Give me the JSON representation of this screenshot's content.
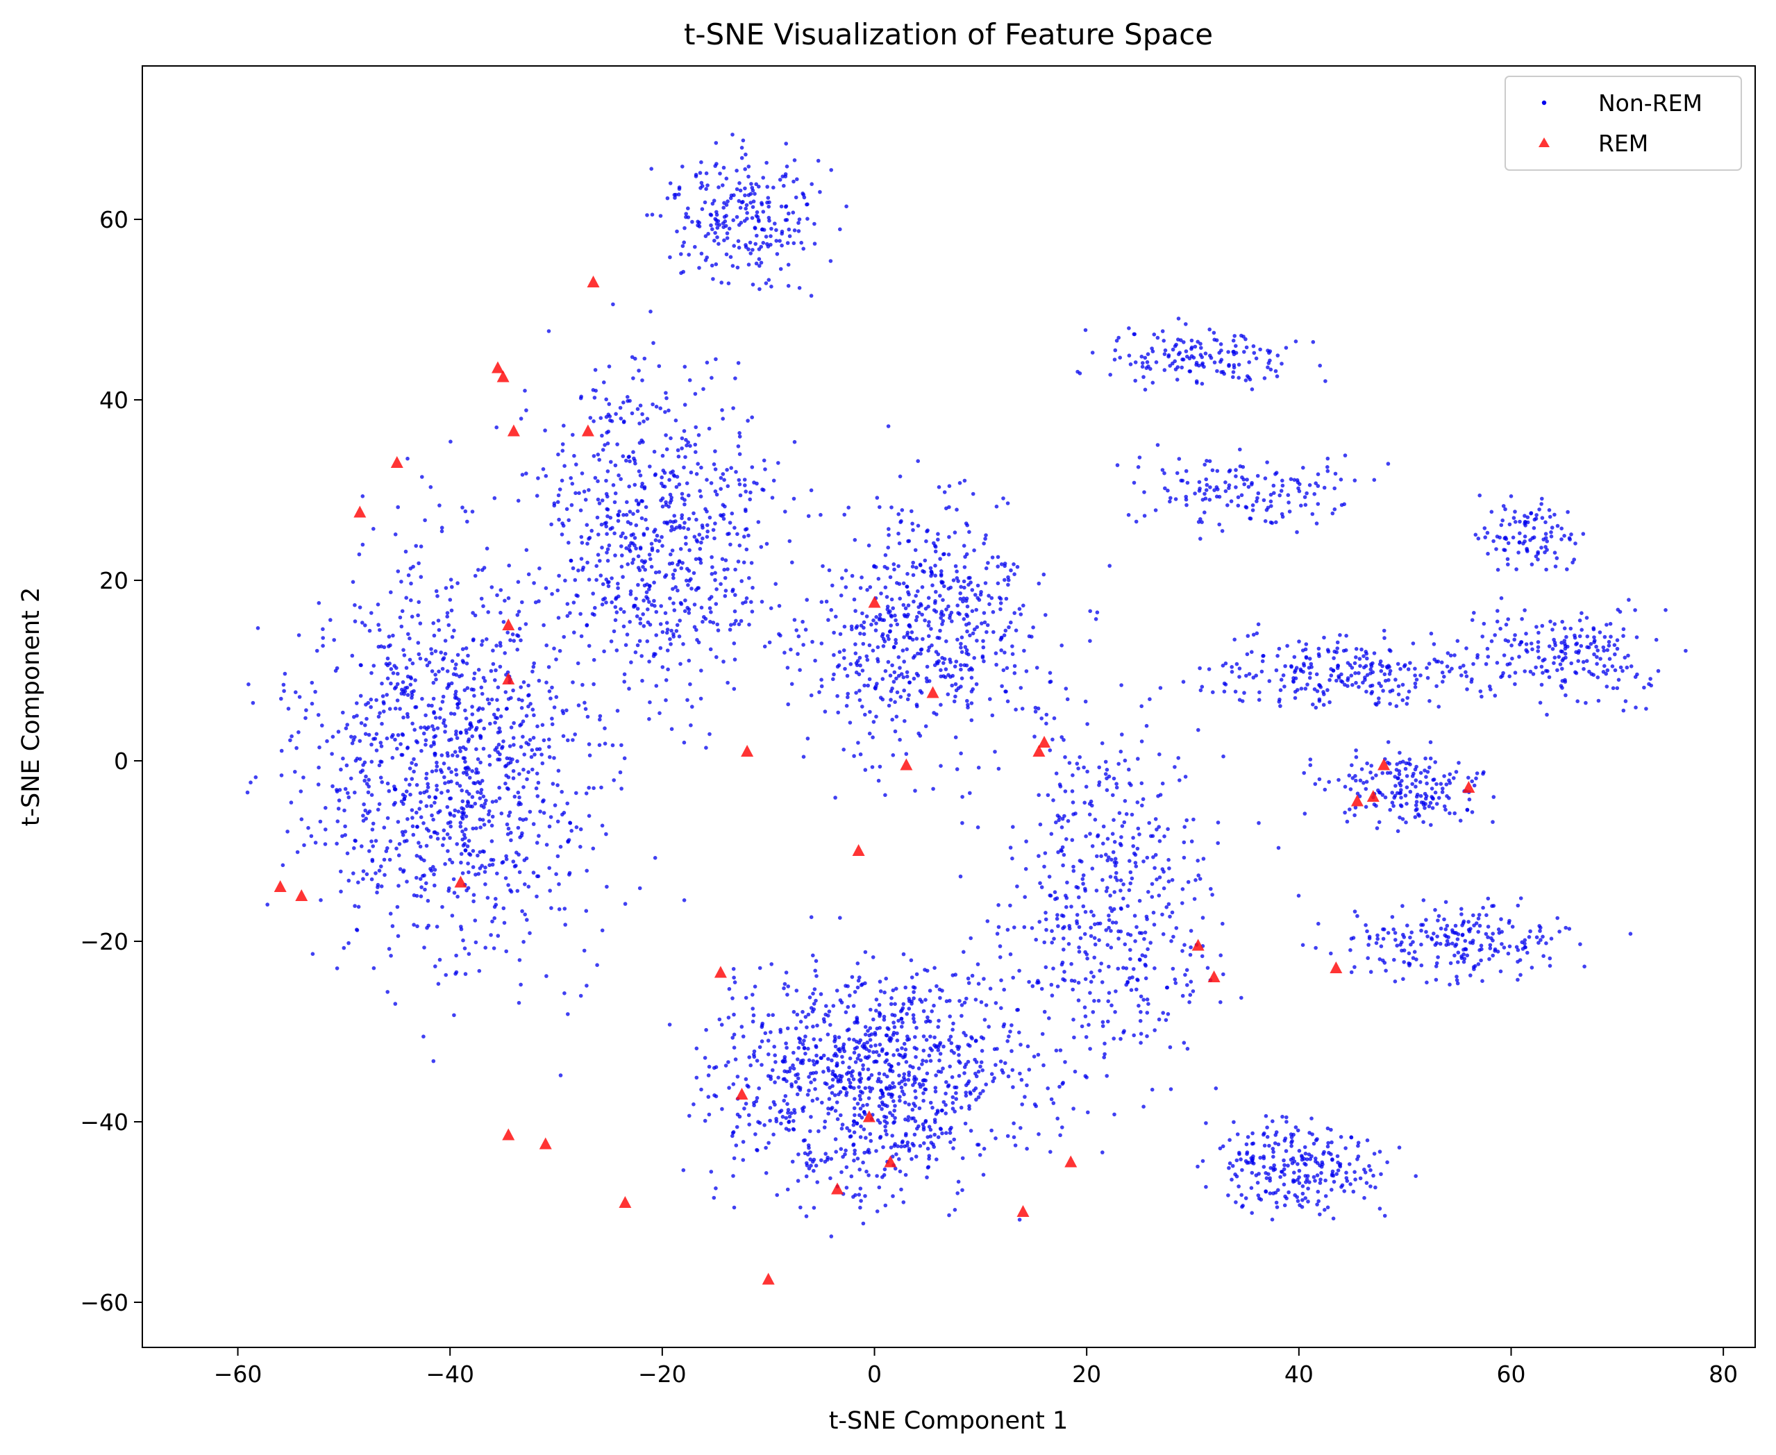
{
  "chart_data": {
    "type": "scatter",
    "title": "t-SNE Visualization of Feature Space",
    "xlabel": "t-SNE Component 1",
    "ylabel": "t-SNE Component 2",
    "xlim": [
      -69,
      83
    ],
    "ylim": [
      -65,
      77
    ],
    "xticks": [
      -60,
      -40,
      -20,
      0,
      20,
      40,
      60,
      80
    ],
    "yticks": [
      -60,
      -40,
      -20,
      0,
      20,
      40,
      60
    ],
    "legend_position": "top-right",
    "grid": false,
    "colors": {
      "non_rem": "#0000ee",
      "rem": "#ff1111",
      "axis": "#000000"
    },
    "series": [
      {
        "name": "Non-REM",
        "marker": "dot",
        "point_count_estimate": 5000,
        "distribution_note": "dense cloud spanning roughly x -62..76, y -58..71 with arms extending to the right at y about 45, 33, 12, 0, -22, -47",
        "regions": [
          {
            "cx": -40,
            "cy": 0,
            "sx": 14,
            "sy": 22,
            "n": 1100
          },
          {
            "cx": -20,
            "cy": 25,
            "sx": 11,
            "sy": 18,
            "n": 700
          },
          {
            "cx": -12,
            "cy": 60,
            "sx": 7,
            "sy": 7,
            "n": 250
          },
          {
            "cx": 0,
            "cy": -35,
            "sx": 14,
            "sy": 13,
            "n": 1000
          },
          {
            "cx": 5,
            "cy": 15,
            "sx": 12,
            "sy": 14,
            "n": 600
          },
          {
            "cx": 22,
            "cy": -15,
            "sx": 10,
            "sy": 20,
            "n": 500
          },
          {
            "cx": 40,
            "cy": -45,
            "sx": 8,
            "sy": 5,
            "n": 250
          },
          {
            "cx": 30,
            "cy": 45,
            "sx": 10,
            "sy": 3,
            "n": 150
          },
          {
            "cx": 35,
            "cy": 30,
            "sx": 10,
            "sy": 4,
            "n": 150
          },
          {
            "cx": 45,
            "cy": 10,
            "sx": 14,
            "sy": 4,
            "n": 250
          },
          {
            "cx": 50,
            "cy": -3,
            "sx": 8,
            "sy": 4,
            "n": 180
          },
          {
            "cx": 55,
            "cy": -20,
            "sx": 12,
            "sy": 4,
            "n": 220
          },
          {
            "cx": 65,
            "cy": 12,
            "sx": 9,
            "sy": 5,
            "n": 200
          },
          {
            "cx": 62,
            "cy": 25,
            "sx": 5,
            "sy": 4,
            "n": 100
          }
        ]
      },
      {
        "name": "REM",
        "marker": "triangle",
        "points": [
          [
            -26.5,
            53
          ],
          [
            -35.5,
            43.5
          ],
          [
            -35,
            42.5
          ],
          [
            -34,
            36.5
          ],
          [
            -27,
            36.5
          ],
          [
            -45,
            33
          ],
          [
            -48.5,
            27.5
          ],
          [
            -34.5,
            15
          ],
          [
            -34.5,
            9
          ],
          [
            0,
            17.5
          ],
          [
            5.5,
            7.5
          ],
          [
            -12,
            1
          ],
          [
            3,
            -0.5
          ],
          [
            16,
            2
          ],
          [
            15.5,
            1
          ],
          [
            48,
            -0.5
          ],
          [
            56,
            -3
          ],
          [
            45.5,
            -4.5
          ],
          [
            47,
            -4
          ],
          [
            -1.5,
            -10
          ],
          [
            -56,
            -14
          ],
          [
            -54,
            -15
          ],
          [
            -39,
            -13.5
          ],
          [
            30.5,
            -20.5
          ],
          [
            32,
            -24
          ],
          [
            43.5,
            -23
          ],
          [
            -14.5,
            -23.5
          ],
          [
            -12.5,
            -37
          ],
          [
            -0.5,
            -39.5
          ],
          [
            -34.5,
            -41.5
          ],
          [
            -31,
            -42.5
          ],
          [
            1.5,
            -44.5
          ],
          [
            18.5,
            -44.5
          ],
          [
            -3.5,
            -47.5
          ],
          [
            -23.5,
            -49
          ],
          [
            14,
            -50
          ],
          [
            -10,
            -57.5
          ]
        ]
      }
    ]
  }
}
